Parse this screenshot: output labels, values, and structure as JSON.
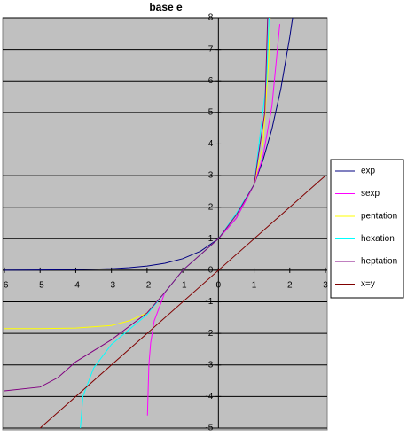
{
  "chart_data": {
    "type": "line",
    "title": "base e",
    "xlim": [
      -6,
      3
    ],
    "xticks": [
      -6,
      -5,
      -4,
      -3,
      -2,
      -1,
      0,
      1,
      2,
      3
    ],
    "ylim": [
      -5,
      8
    ],
    "yticks": [
      -5,
      -4,
      -3,
      -2,
      -1,
      0,
      1,
      2,
      3,
      4,
      5,
      6,
      7,
      8
    ],
    "grid": true,
    "legend": "right",
    "series": [
      {
        "name": "exp",
        "color": "#000080",
        "x": [
          -6,
          -5,
          -4,
          -3,
          -2.5,
          -2,
          -1.5,
          -1,
          -0.5,
          0,
          0.5,
          1,
          1.25,
          1.5,
          1.75,
          2,
          2.08
        ],
        "values": [
          0.0025,
          0.0067,
          0.018,
          0.05,
          0.082,
          0.135,
          0.223,
          0.368,
          0.607,
          1,
          1.65,
          2.718,
          3.49,
          4.48,
          5.75,
          7.39,
          8
        ]
      },
      {
        "name": "sexp",
        "color": "#ff00ff",
        "x": [
          -1.99,
          -1.95,
          -1.9,
          -1.8,
          -1.5,
          -1,
          -0.5,
          0,
          0.5,
          1,
          1.25,
          1.5,
          1.72
        ],
        "values": [
          -4.6,
          -3,
          -2.3,
          -1.6,
          -0.7,
          0,
          0.5,
          1,
          1.65,
          2.718,
          3.61,
          5.2,
          7.8
        ]
      },
      {
        "name": "pentation",
        "color": "#ffff00",
        "x": [
          -6,
          -5,
          -4,
          -3,
          -2.5,
          -2,
          -1.5,
          -1,
          -0.5,
          0,
          0.5,
          1,
          1.25,
          1.4,
          1.45
        ],
        "values": [
          -1.85,
          -1.85,
          -1.83,
          -1.75,
          -1.6,
          -1.35,
          -0.7,
          0,
          0.5,
          1,
          1.75,
          2.718,
          4,
          6.5,
          8
        ]
      },
      {
        "name": "hexation",
        "color": "#00ffff",
        "x": [
          -3.87,
          -3.8,
          -3.5,
          -3,
          -2,
          -1.5,
          -1,
          0,
          0.5,
          1,
          1.35,
          1.42
        ],
        "values": [
          -5,
          -4,
          -3.1,
          -2.35,
          -1.4,
          -0.7,
          0,
          1,
          1.8,
          2.718,
          6,
          8
        ]
      },
      {
        "name": "heptation",
        "color": "#800080",
        "x": [
          -6,
          -5,
          -4.5,
          -4,
          -3,
          -2,
          -1.5,
          -1,
          0,
          0.5,
          1,
          1.3,
          1.38
        ],
        "values": [
          -3.82,
          -3.7,
          -3.4,
          -2.9,
          -2.2,
          -1.35,
          -0.7,
          0,
          1,
          1.75,
          2.718,
          5,
          8
        ]
      },
      {
        "name": "x=y",
        "color": "#800000",
        "x": [
          -5,
          3
        ],
        "values": [
          -5,
          3
        ]
      }
    ]
  }
}
